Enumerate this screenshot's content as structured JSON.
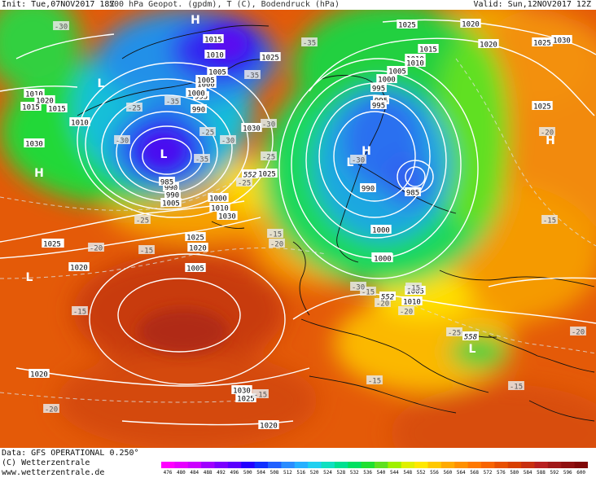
{
  "header": {
    "init": "Init: Tue,07NOV2017 18Z",
    "title": "500 hPa Geopot. (gpdm), T (C), Bodendruck (hPa)",
    "valid": "Valid: Sun,12NOV2017 12Z"
  },
  "footer": {
    "data_line": "Data: GFS OPERATIONAL 0.250°",
    "copyright": "(C) Wetterzentrale",
    "url": "www.wetterzentrale.de"
  },
  "legend": {
    "labels": [
      "476",
      "480",
      "484",
      "488",
      "492",
      "496",
      "500",
      "504",
      "508",
      "512",
      "516",
      "520",
      "524",
      "528",
      "532",
      "536",
      "540",
      "544",
      "548",
      "552",
      "556",
      "560",
      "564",
      "568",
      "572",
      "576",
      "580",
      "584",
      "588",
      "592",
      "596",
      "600"
    ],
    "colors": [
      "#ff00ff",
      "#e600ff",
      "#cc00ff",
      "#a000ff",
      "#7a00ff",
      "#5a00ff",
      "#2400ff",
      "#1030ff",
      "#2060ff",
      "#2a8cff",
      "#26b0ff",
      "#20d0f0",
      "#10e0c0",
      "#00e090",
      "#00e060",
      "#20e030",
      "#60e020",
      "#a0f000",
      "#e0f000",
      "#ffe800",
      "#ffc800",
      "#ffaa00",
      "#ff9000",
      "#ff7800",
      "#f86400",
      "#e85000",
      "#d84000",
      "#c83010",
      "#b82020",
      "#a01818",
      "#901010",
      "#800808"
    ]
  },
  "pressure_labels": [
    "1025",
    "1020",
    "1030",
    "1015",
    "1010",
    "1010",
    "1025",
    "1005",
    "1000",
    "995",
    "1010",
    "1015",
    "1025",
    "1030",
    "1025",
    "990",
    "995",
    "1000",
    "1005",
    "1010",
    "1015",
    "1020",
    "1025",
    "1030",
    "1020",
    "1015",
    "1010",
    "1005",
    "1000",
    "995",
    "990",
    "1000",
    "995",
    "990",
    "985",
    "985",
    "990",
    "1005",
    "1000",
    "1010",
    "1030",
    "1025",
    "1020",
    "1005",
    "1010",
    "1020",
    "1025",
    "1020",
    "1030",
    "1025",
    "1020",
    "1015",
    "1010",
    "1005",
    "1000"
  ],
  "temp_labels": [
    "-30",
    "-35",
    "-25",
    "-30",
    "-35",
    "-25",
    "-30",
    "-35",
    "-25",
    "-15",
    "-20",
    "-15",
    "-20",
    "-25",
    "-30",
    "-15",
    "-25",
    "-20",
    "-15",
    "-15",
    "-20",
    "-15",
    "-20",
    "-15",
    "-15",
    "-30",
    "-25",
    "-20",
    "-35",
    "-15",
    "-20",
    "-30"
  ],
  "heights_552": [
    "552",
    "552",
    "558"
  ],
  "centers": {
    "highs": [
      "H",
      "H",
      "H",
      "H"
    ],
    "lows": [
      "L",
      "L",
      "L",
      "L",
      "L"
    ]
  }
}
